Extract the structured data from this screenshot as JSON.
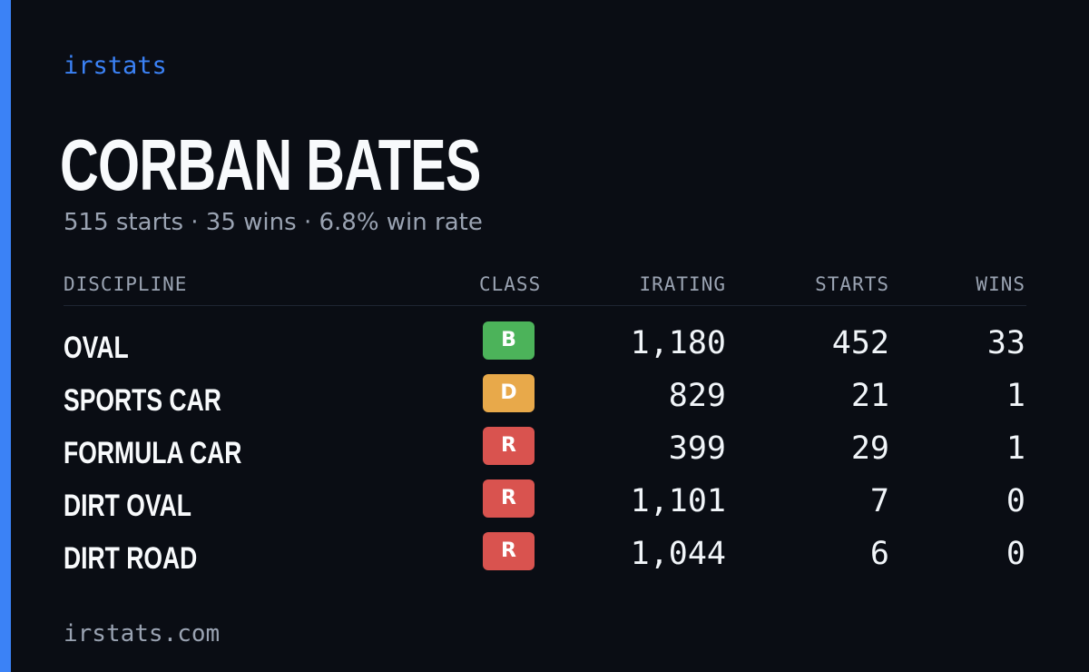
{
  "brand": "irstats",
  "player": {
    "name": "CORBAN BATES"
  },
  "summary": {
    "starts": "515 starts",
    "wins": "35 wins",
    "win_rate": "6.8% win rate",
    "separator": "·"
  },
  "table": {
    "headers": {
      "discipline": "DISCIPLINE",
      "class": "CLASS",
      "irating": "IRATING",
      "starts": "STARTS",
      "wins": "WINS"
    },
    "rows": [
      {
        "discipline": "OVAL",
        "class": "B",
        "class_color": "#4cb35a",
        "irating": "1,180",
        "starts": "452",
        "wins": "33"
      },
      {
        "discipline": "SPORTS CAR",
        "class": "D",
        "class_color": "#e8a94a",
        "irating": "829",
        "starts": "21",
        "wins": "1"
      },
      {
        "discipline": "FORMULA CAR",
        "class": "R",
        "class_color": "#d9534f",
        "irating": "399",
        "starts": "29",
        "wins": "1"
      },
      {
        "discipline": "DIRT OVAL",
        "class": "R",
        "class_color": "#d9534f",
        "irating": "1,101",
        "starts": "7",
        "wins": "0"
      },
      {
        "discipline": "DIRT ROAD",
        "class": "R",
        "class_color": "#d9534f",
        "irating": "1,044",
        "starts": "6",
        "wins": "0"
      }
    ]
  },
  "footer": "irstats.com",
  "colors": {
    "accent": "#3b82f6",
    "background": "#0a0d14"
  }
}
